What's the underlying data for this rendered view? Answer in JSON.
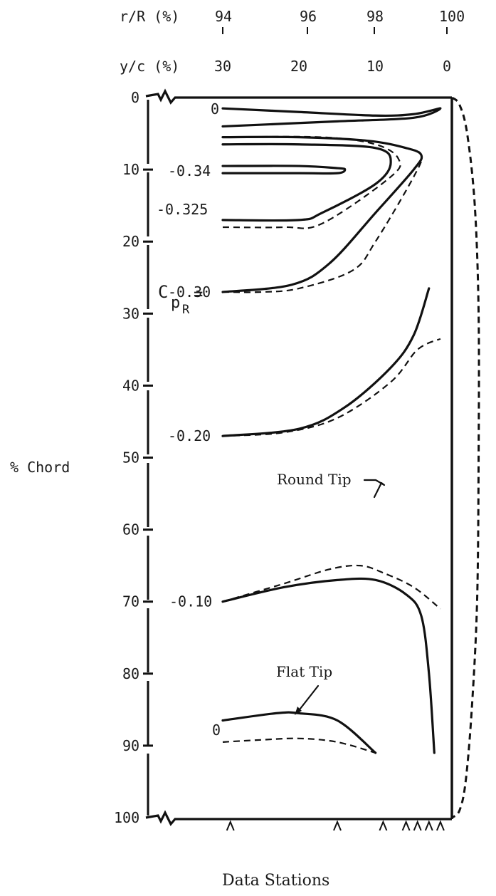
{
  "chart_data": {
    "type": "line",
    "title": "",
    "ylabel": "% Chord",
    "xlabel": "Data Stations",
    "top_axis_r": {
      "label": "r/R (%)",
      "ticks": [
        "94",
        "96",
        "98",
        "100"
      ]
    },
    "top_axis_y": {
      "label": "y/c (%)",
      "ticks": [
        "30",
        "20",
        "10",
        "0"
      ]
    },
    "yticks": [
      "0",
      "10",
      "20",
      "30",
      "40",
      "50",
      "60",
      "70",
      "80",
      "90",
      "100"
    ],
    "ylim": [
      0,
      100
    ],
    "xlim_y_over_c": [
      30,
      0
    ],
    "cp_label": "C",
    "cp_subscript": "p",
    "cp_subsubscript": "R",
    "cp_equals": "=",
    "contour_labels": [
      "0",
      "-0.34",
      "-0.325",
      "-0.30",
      "-0.20",
      "-0.10",
      "0"
    ],
    "annotations": [
      "Round Tip",
      "Flat Tip"
    ],
    "data_stations_y_over_c": [
      29,
      15,
      9,
      6,
      4.5,
      3,
      1.5
    ],
    "series": [
      {
        "name": "Flat Tip",
        "style": "solid",
        "contours": [
          {
            "level": "0",
            "points": [
              [
                30,
                1.5
              ],
              [
                20,
                2
              ],
              [
                10,
                2.5
              ],
              [
                5,
                2.3
              ],
              [
                1.5,
                1.5
              ],
              [
                5,
                2.8
              ],
              [
                15,
                3.3
              ],
              [
                30,
                4
              ]
            ]
          },
          {
            "level": "-0.34",
            "points": [
              [
                30,
                9.5
              ],
              [
                20,
                9.5
              ],
              [
                15,
                9.8
              ],
              [
                14,
                10
              ],
              [
                15,
                10.5
              ],
              [
                20,
                10.5
              ],
              [
                30,
                10.5
              ]
            ]
          },
          {
            "level": "-0.325",
            "points": [
              [
                30,
                17
              ],
              [
                20,
                17
              ],
              [
                17,
                16
              ],
              [
                10,
                12
              ],
              [
                8,
                9
              ],
              [
                10,
                7
              ],
              [
                20,
                6.5
              ],
              [
                30,
                6.5
              ]
            ]
          },
          {
            "level": "-0.30",
            "points": [
              [
                30,
                27
              ],
              [
                21,
                26
              ],
              [
                16,
                23
              ],
              [
                10,
                16
              ],
              [
                5,
                10
              ],
              [
                4,
                8
              ],
              [
                6,
                7
              ],
              [
                11,
                6
              ],
              [
                20,
                5.5
              ],
              [
                30,
                5.5
              ]
            ]
          },
          {
            "level": "-0.20",
            "points": [
              [
                30,
                47
              ],
              [
                20,
                46
              ],
              [
                14,
                43
              ],
              [
                8,
                37.5
              ],
              [
                5,
                33
              ],
              [
                3,
                26.5
              ]
            ]
          },
          {
            "level": "-0.10",
            "points": [
              [
                30,
                70
              ],
              [
                22,
                68
              ],
              [
                15,
                67
              ],
              [
                10,
                67
              ],
              [
                6,
                69
              ],
              [
                4,
                72
              ],
              [
                3,
                80
              ],
              [
                2.3,
                91
              ]
            ]
          },
          {
            "level": "0",
            "points": [
              [
                30,
                86.5
              ],
              [
                23,
                85.5
              ],
              [
                20,
                85.5
              ],
              [
                15,
                86.5
              ],
              [
                10,
                91
              ]
            ]
          }
        ]
      },
      {
        "name": "Round Tip",
        "style": "dashed",
        "contours": [
          {
            "level": "-0.325",
            "points": [
              [
                30,
                18
              ],
              [
                22,
                18
              ],
              [
                17,
                17.5
              ],
              [
                8,
                11
              ],
              [
                7,
                8.5
              ],
              [
                10,
                6.5
              ],
              [
                17,
                5.5
              ],
              [
                30,
                5.5
              ]
            ]
          },
          {
            "level": "-0.30",
            "points": [
              [
                30,
                27
              ],
              [
                25,
                27
              ],
              [
                20,
                26.5
              ],
              [
                13,
                24
              ],
              [
                10,
                20
              ],
              [
                5,
                11
              ],
              [
                4,
                8
              ],
              [
                6,
                7
              ],
              [
                11,
                6
              ],
              [
                20,
                5.5
              ],
              [
                30,
                5.5
              ]
            ]
          },
          {
            "level": "-0.20",
            "points": [
              [
                30,
                47
              ],
              [
                22,
                46.5
              ],
              [
                15,
                44.5
              ],
              [
                8,
                39.5
              ],
              [
                4.5,
                35
              ],
              [
                1.5,
                33.5
              ]
            ]
          },
          {
            "level": "-0.10",
            "points": [
              [
                30,
                70
              ],
              [
                22,
                67.5
              ],
              [
                16,
                65.5
              ],
              [
                12,
                65
              ],
              [
                9,
                66
              ],
              [
                5,
                68
              ],
              [
                1.5,
                71
              ]
            ]
          },
          {
            "level": "0",
            "points": [
              [
                30,
                89.5
              ],
              [
                25,
                89.2
              ],
              [
                20,
                89
              ],
              [
                15,
                89.5
              ],
              [
                10,
                91
              ]
            ]
          }
        ]
      }
    ],
    "round_tip_boundary": [
      [
        0,
        0
      ],
      [
        -1,
        1
      ],
      [
        -2,
        5
      ],
      [
        -3,
        15
      ],
      [
        -3.5,
        30
      ],
      [
        -3.5,
        50
      ],
      [
        -3.3,
        70
      ],
      [
        -2.6,
        85
      ],
      [
        -1.8,
        95
      ],
      [
        -1,
        99
      ],
      [
        0,
        100
      ]
    ],
    "grid": false,
    "legend_position": "none"
  }
}
